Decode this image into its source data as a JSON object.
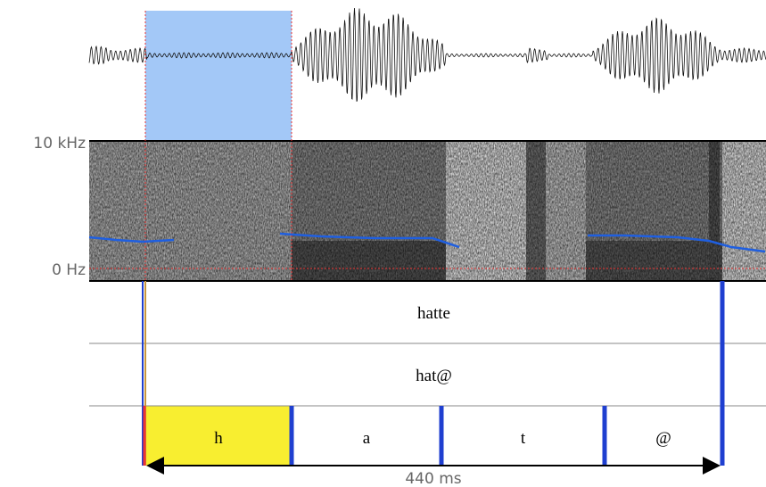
{
  "spectrogram": {
    "top_label": "10 kHz",
    "bottom_label": "0 Hz"
  },
  "tiers": [
    [
      "hatte"
    ],
    [
      "hat@"
    ],
    [
      "h",
      "a",
      "t",
      "@"
    ]
  ],
  "duration": "440 ms"
}
